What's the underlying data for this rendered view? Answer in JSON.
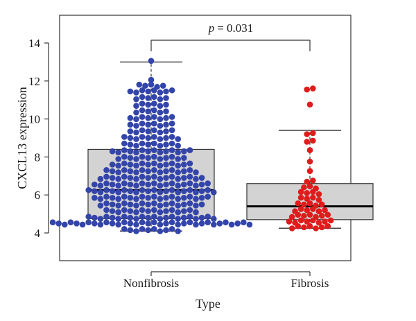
{
  "chart_data": {
    "type": "boxplot-beeswarm",
    "xlabel": "Type",
    "ylabel": "CXCL13 expression",
    "ylim": [
      3.0,
      15.0
    ],
    "y_ticks": [
      4,
      6,
      8,
      10,
      12,
      14
    ],
    "categories": [
      "Nonfibrosis",
      "Fibrosis"
    ],
    "annotation": {
      "p_label": "p",
      "p_value_text": "= 0.031"
    },
    "groups": [
      {
        "name": "Nonfibrosis",
        "color": "#3344aa",
        "box": {
          "whisker_low": 4.1,
          "q1": 4.75,
          "median": 6.25,
          "q3": 8.4,
          "whisker_high": 13.0
        },
        "points_hist": [
          {
            "y": 4.15,
            "n": 10
          },
          {
            "y": 4.5,
            "n": 34
          },
          {
            "y": 4.8,
            "n": 22
          },
          {
            "y": 5.15,
            "n": 16
          },
          {
            "y": 5.5,
            "n": 18
          },
          {
            "y": 5.85,
            "n": 20
          },
          {
            "y": 6.2,
            "n": 22
          },
          {
            "y": 6.55,
            "n": 20
          },
          {
            "y": 6.9,
            "n": 18
          },
          {
            "y": 7.25,
            "n": 16
          },
          {
            "y": 7.6,
            "n": 14
          },
          {
            "y": 7.95,
            "n": 12
          },
          {
            "y": 8.3,
            "n": 14
          },
          {
            "y": 8.65,
            "n": 10
          },
          {
            "y": 9.0,
            "n": 10
          },
          {
            "y": 9.35,
            "n": 8
          },
          {
            "y": 9.7,
            "n": 8
          },
          {
            "y": 10.05,
            "n": 8
          },
          {
            "y": 10.4,
            "n": 6
          },
          {
            "y": 10.75,
            "n": 6
          },
          {
            "y": 11.1,
            "n": 6
          },
          {
            "y": 11.45,
            "n": 8
          },
          {
            "y": 11.75,
            "n": 5
          },
          {
            "y": 12.0,
            "n": 1
          },
          {
            "y": 13.0,
            "n": 1
          }
        ]
      },
      {
        "name": "Fibrosis",
        "color": "#e01b1b",
        "box": {
          "whisker_low": 4.25,
          "q1": 4.7,
          "median": 5.4,
          "q3": 6.6,
          "whisker_high": 9.4
        },
        "points_hist": [
          {
            "y": 4.3,
            "n": 7
          },
          {
            "y": 4.6,
            "n": 8
          },
          {
            "y": 4.9,
            "n": 7
          },
          {
            "y": 5.2,
            "n": 6
          },
          {
            "y": 5.5,
            "n": 5
          },
          {
            "y": 5.8,
            "n": 4
          },
          {
            "y": 6.1,
            "n": 4
          },
          {
            "y": 6.4,
            "n": 3
          },
          {
            "y": 6.7,
            "n": 2
          },
          {
            "y": 7.2,
            "n": 1
          },
          {
            "y": 7.7,
            "n": 1
          },
          {
            "y": 8.3,
            "n": 1
          },
          {
            "y": 8.8,
            "n": 2
          },
          {
            "y": 9.2,
            "n": 2
          },
          {
            "y": 10.7,
            "n": 1
          },
          {
            "y": 11.55,
            "n": 2
          }
        ]
      }
    ]
  }
}
